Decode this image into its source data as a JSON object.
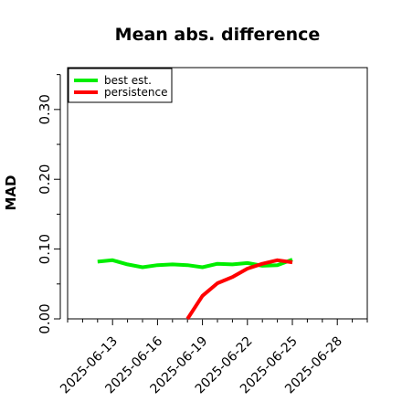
{
  "chart_data": {
    "type": "line",
    "title": "Mean abs. difference",
    "xlabel": "",
    "ylabel": "MAD",
    "x_ticks": [
      "2025-06-13",
      "2025-06-16",
      "2025-06-19",
      "2025-06-22",
      "2025-06-25",
      "2025-06-28"
    ],
    "xlim": [
      "2025-06-10",
      "2025-06-30"
    ],
    "y_ticks": [
      "0.00",
      "0.10",
      "0.20",
      "0.30"
    ],
    "y_tick_values": [
      0.0,
      0.1,
      0.2,
      0.3
    ],
    "ylim": [
      0.0,
      0.36
    ],
    "grid": false,
    "legend_position": "top-left",
    "series": [
      {
        "name": "best est.",
        "color": "#00ee00",
        "x": [
          "2025-06-12",
          "2025-06-13",
          "2025-06-14",
          "2025-06-15",
          "2025-06-16",
          "2025-06-17",
          "2025-06-18",
          "2025-06-19",
          "2025-06-20",
          "2025-06-21",
          "2025-06-22",
          "2025-06-23",
          "2025-06-24",
          "2025-06-25"
        ],
        "values": [
          0.082,
          0.084,
          0.078,
          0.074,
          0.077,
          0.078,
          0.077,
          0.074,
          0.079,
          0.078,
          0.08,
          0.076,
          0.077,
          0.085
        ]
      },
      {
        "name": "persistence",
        "color": "#ff0000",
        "x": [
          "2025-06-18",
          "2025-06-19",
          "2025-06-20",
          "2025-06-21",
          "2025-06-22",
          "2025-06-23",
          "2025-06-24",
          "2025-06-25"
        ],
        "values": [
          0.0,
          0.033,
          0.051,
          0.06,
          0.072,
          0.079,
          0.084,
          0.081
        ]
      },
      {
        "name": "",
        "color": "#555555",
        "x": [
          "2025-06-12",
          "2025-06-25"
        ],
        "values": [
          0.0,
          0.0
        ]
      }
    ]
  }
}
